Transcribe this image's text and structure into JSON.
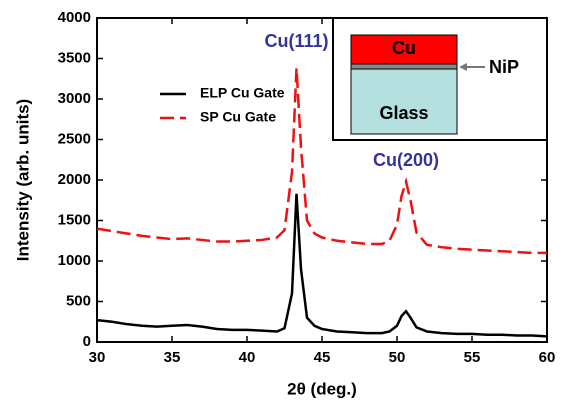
{
  "chart_data": {
    "type": "line",
    "x_label": "2θ (deg.)",
    "y_label": "Intensity (arb. units)",
    "x": [
      30,
      31,
      32,
      33,
      34,
      35,
      36,
      37,
      38,
      39,
      40,
      41,
      42,
      42.5,
      43,
      43.3,
      43.6,
      44,
      44.5,
      45,
      46,
      47,
      48,
      49,
      49.5,
      50,
      50.3,
      50.6,
      50.9,
      51.3,
      52,
      53,
      54,
      55,
      56,
      57,
      58,
      59,
      60
    ],
    "series": [
      {
        "name": "ELP Cu Gate",
        "color": "#000000",
        "dash": "solid",
        "values": [
          270,
          250,
          220,
          200,
          190,
          200,
          210,
          190,
          160,
          150,
          150,
          140,
          130,
          170,
          600,
          1830,
          900,
          300,
          200,
          160,
          130,
          120,
          110,
          110,
          130,
          200,
          320,
          380,
          300,
          180,
          130,
          110,
          100,
          100,
          90,
          90,
          80,
          80,
          70
        ]
      },
      {
        "name": "SP Cu Gate",
        "color": "#ee1111",
        "dash": "dashed",
        "values": [
          1400,
          1370,
          1340,
          1310,
          1290,
          1270,
          1280,
          1260,
          1240,
          1240,
          1250,
          1260,
          1290,
          1380,
          2100,
          3380,
          2400,
          1500,
          1340,
          1290,
          1250,
          1230,
          1210,
          1210,
          1250,
          1450,
          1800,
          1980,
          1750,
          1350,
          1200,
          1170,
          1150,
          1140,
          1130,
          1120,
          1110,
          1100,
          1100
        ]
      }
    ],
    "xlim": [
      30,
      60
    ],
    "xticks": [
      30,
      35,
      40,
      45,
      50,
      55,
      60
    ],
    "ylim": [
      0,
      4000
    ],
    "yticks": [
      0,
      500,
      1000,
      1500,
      2000,
      2500,
      3000,
      3500,
      4000
    ],
    "legend": "upper left",
    "annotations": [
      {
        "text": "Cu(111)",
        "x": 43.3,
        "y": 3700,
        "color": "#33339a"
      },
      {
        "text": "Cu(200)",
        "x": 50.6,
        "y": 2230,
        "color": "#33339a"
      }
    ],
    "inset": {
      "top_layer": "Cu",
      "middle_layer": "NiP",
      "bottom_layer": "Glass"
    }
  }
}
